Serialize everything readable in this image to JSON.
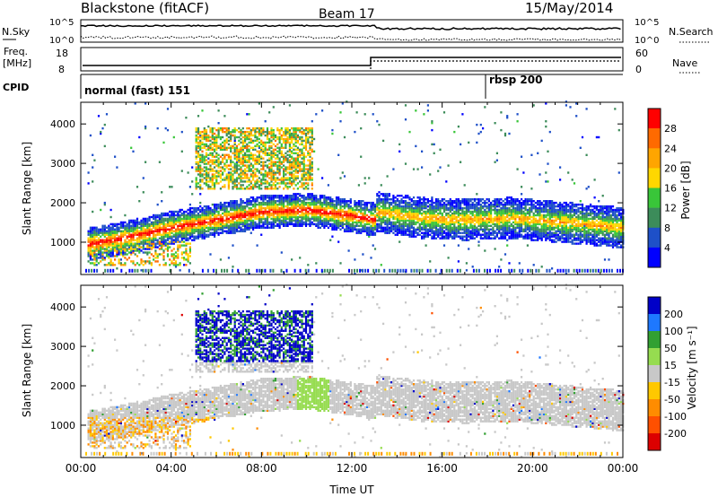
{
  "header": {
    "title": "Blackstone (fitACF)",
    "beam": "Beam 17",
    "date": "15/May/2014"
  },
  "top_panels": {
    "nsky_label": "N.Sky",
    "nsearch_label": "N.Search",
    "noise_ticks_left": [
      "10^5",
      "10^0"
    ],
    "noise_ticks_right": [
      "10^5",
      "10^0"
    ],
    "freq_label_line1": "Freq.",
    "freq_label_line2": "[MHz]",
    "freq_ticks": [
      "18",
      "8"
    ],
    "nave_label": "Nave",
    "nave_ticks": [
      "60",
      "0"
    ],
    "cpid_label": "CPID",
    "cpid_segments": [
      {
        "label": "normal (fast) 151",
        "start_hour": 0
      },
      {
        "label": "rbsp 200",
        "start_hour": 18
      }
    ]
  },
  "chart_data": [
    {
      "type": "heatmap",
      "panel": "power",
      "ylabel": "Slant Range [km]",
      "xlabel": "",
      "ylim": [
        180,
        4550
      ],
      "yticks": [
        1000,
        2000,
        3000,
        4000
      ],
      "colorbar_label": "Power [dB]",
      "colorbar_ticks": [
        "28",
        "24",
        "20",
        "16",
        "12",
        "8",
        "4"
      ],
      "colorbar_colors": [
        "#ff0000",
        "#ff6a00",
        "#ffa500",
        "#ffd700",
        "#39c639",
        "#3c8c5a",
        "#1e50c8",
        "#0000ff"
      ],
      "features": [
        {
          "name": "main echo band",
          "path_hours": [
            0,
            2,
            4,
            6,
            8,
            10,
            12,
            13
          ],
          "path_km": [
            900,
            1100,
            1350,
            1550,
            1750,
            1800,
            1650,
            1550
          ]
        },
        {
          "name": "second echo band",
          "path_hours": [
            13,
            15,
            17,
            19,
            21,
            24
          ],
          "path_km": [
            1750,
            1600,
            1550,
            1600,
            1500,
            1350
          ]
        }
      ]
    },
    {
      "type": "heatmap",
      "panel": "velocity",
      "ylabel": "Slant Range [km]",
      "xlabel": "Time UT",
      "ylim": [
        180,
        4550
      ],
      "yticks": [
        1000,
        2000,
        3000,
        4000
      ],
      "colorbar_label": "Velocity [m s⁻¹]",
      "colorbar_ticks": [
        "200",
        "100",
        "50",
        "15",
        "-15",
        "-50",
        "-100",
        "-200"
      ],
      "colorbar_colors": [
        "#0000c8",
        "#1e78ff",
        "#32a032",
        "#96dc50",
        "#c8c8c8",
        "#ffc800",
        "#ff8c00",
        "#ff5000",
        "#dc0000"
      ],
      "x_ticks": [
        "00:00",
        "04:00",
        "08:00",
        "12:00",
        "16:00",
        "20:00",
        "00:00"
      ],
      "xlim_hours": [
        0,
        24
      ]
    }
  ]
}
